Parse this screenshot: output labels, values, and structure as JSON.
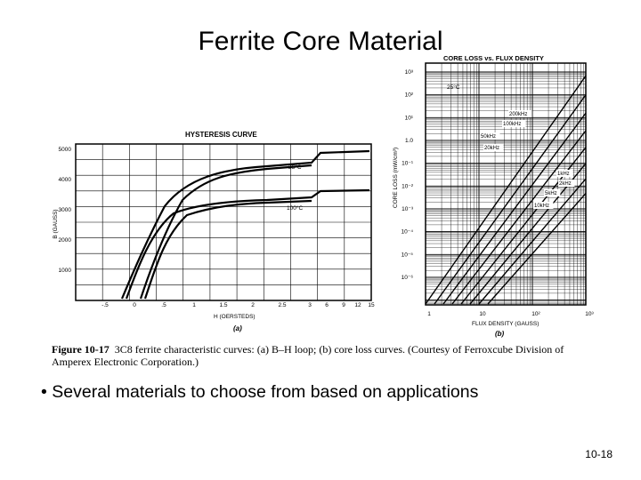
{
  "slide": {
    "title": "Ferrite Core Material",
    "bullet": "Several materials to choose from based on applications",
    "page_number": "10-18"
  },
  "figure": {
    "caption_label": "Figure 10-17",
    "caption_text": "3C8 ferrite characteristic curves: (a) B–H loop; (b) core loss curves. (Courtesy of Ferroxcube Division of Amperex Electronic Corporation.)",
    "hysteresis": {
      "title": "HYSTERESIS CURVE",
      "ylabel": "B (GAUSS)",
      "xlabel": "H (OERSTEDS)",
      "panel_label": "(a)",
      "yticks": [
        "5000",
        "4000",
        "3000",
        "2000",
        "1000"
      ],
      "xticks": [
        "-.5",
        "0",
        ".5",
        "1",
        "1.5",
        "2",
        "2.5",
        "3",
        "6",
        "9",
        "12",
        "15"
      ],
      "curve_labels": [
        "25°C",
        "100°C"
      ]
    },
    "core_loss": {
      "title": "CORE LOSS vs. FLUX DENSITY",
      "ylabel": "CORE LOSS (mW/cm³)",
      "xlabel": "FLUX DENSITY (GAUSS)",
      "panel_label": "(b)",
      "temperature": "25°C",
      "yticks": [
        "10³",
        "10²",
        "10¹",
        "1.0",
        "10⁻¹",
        "10⁻²",
        "10⁻³",
        "10⁻⁴",
        "10⁻⁵",
        "10⁻⁶"
      ],
      "xticks": [
        "1",
        "10",
        "10²",
        "10³"
      ],
      "frequencies": [
        "200kHz",
        "100kHz",
        "50kHz",
        "20kHz",
        "1kHz",
        "2kHz",
        "5kHz",
        "10kHz"
      ]
    }
  }
}
